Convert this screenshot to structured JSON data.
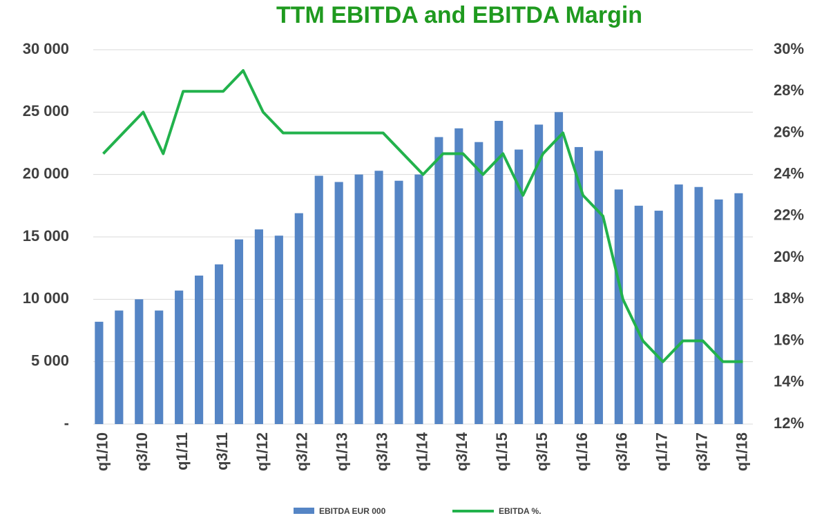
{
  "chart_data": {
    "type": "bar_line",
    "title": "TTM EBITDA and EBITDA Margin",
    "categories": [
      "q1/10",
      null,
      "q3/10",
      null,
      "q1/11",
      null,
      "q3/11",
      null,
      "q1/12",
      null,
      "q3/12",
      null,
      "q1/13",
      null,
      "q3/13",
      null,
      "q1/14",
      null,
      "q3/14",
      null,
      "q1/15",
      null,
      "q3/15",
      null,
      "q1/16",
      null,
      "q3/16",
      null,
      "q1/17",
      null,
      "q3/17",
      null,
      "q1/18"
    ],
    "series": [
      {
        "name": "EBITDA EUR 000",
        "type": "bar",
        "color": "#5585c5",
        "values": [
          8200,
          9100,
          10000,
          9100,
          10700,
          11900,
          12800,
          14800,
          15600,
          15100,
          16900,
          19900,
          19400,
          20000,
          20300,
          19500,
          20000,
          23000,
          23700,
          22600,
          24300,
          22000,
          24000,
          25000,
          22200,
          21900,
          18800,
          17500,
          17100,
          19200,
          19000,
          18000,
          18500
        ]
      },
      {
        "name": "EBITDA %.",
        "type": "line",
        "axis": "y2",
        "color": "#22b24c",
        "values": [
          25,
          26,
          27,
          25,
          28,
          28,
          28,
          29,
          27,
          26,
          26,
          26,
          26,
          26,
          26,
          25,
          24,
          25,
          25,
          24,
          25,
          23,
          25,
          26,
          23,
          22,
          18,
          16,
          15,
          16,
          16,
          15,
          15
        ]
      }
    ],
    "ylim": [
      0,
      30000
    ],
    "yticks": [
      {
        "value": 0,
        "label": "-"
      },
      {
        "value": 5000,
        "label": "5 000"
      },
      {
        "value": 10000,
        "label": "10 000"
      },
      {
        "value": 15000,
        "label": "15 000"
      },
      {
        "value": 20000,
        "label": "20 000"
      },
      {
        "value": 25000,
        "label": "25 000"
      },
      {
        "value": 30000,
        "label": "30 000"
      }
    ],
    "y2lim": [
      12,
      30
    ],
    "y2ticks": [
      {
        "value": 12,
        "label": "12%"
      },
      {
        "value": 14,
        "label": "14%"
      },
      {
        "value": 16,
        "label": "16%"
      },
      {
        "value": 18,
        "label": "18%"
      },
      {
        "value": 20,
        "label": "20%"
      },
      {
        "value": 22,
        "label": "22%"
      },
      {
        "value": 24,
        "label": "24%"
      },
      {
        "value": 26,
        "label": "26%"
      },
      {
        "value": 28,
        "label": "28%"
      },
      {
        "value": 30,
        "label": "30%"
      }
    ],
    "grid": true,
    "legend": "bottom"
  }
}
